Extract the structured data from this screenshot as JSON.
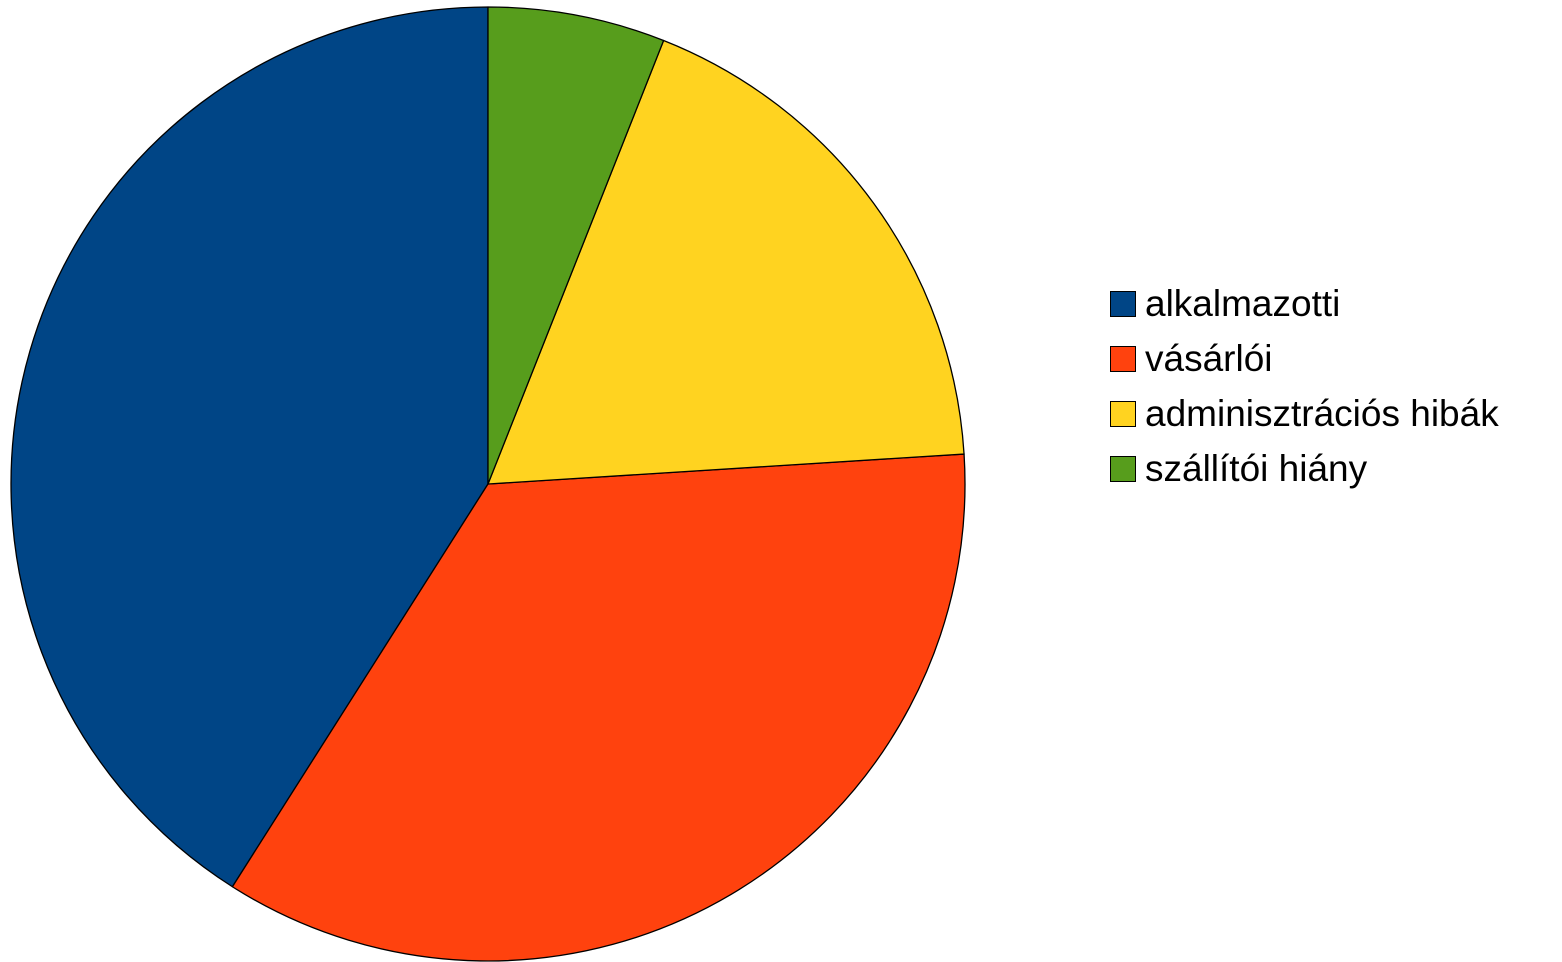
{
  "chart_data": {
    "type": "pie",
    "categories": [
      "alkalmazotti",
      "vásárlói",
      "adminisztrációs hibák",
      "szállítói hiány"
    ],
    "values": [
      41,
      35,
      18,
      6
    ],
    "colors": [
      "#004586",
      "#ff420e",
      "#ffd320",
      "#579d1c"
    ],
    "start_angle_deg": 0,
    "direction": "counterclockwise",
    "title": "",
    "legend_position": "right"
  }
}
